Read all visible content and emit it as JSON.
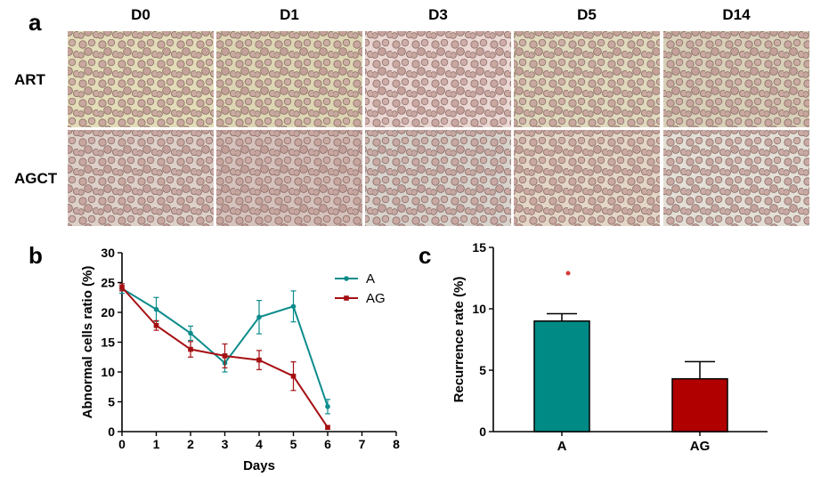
{
  "panel_a": {
    "label": "a",
    "columns": [
      "D0",
      "D1",
      "D3",
      "D5",
      "D14"
    ],
    "rows": [
      "ART",
      "AGCT"
    ]
  },
  "panel_b": {
    "label": "b"
  },
  "panel_c": {
    "label": "c"
  },
  "colors": {
    "A": "#0e8c8c",
    "AG": "#a50f12",
    "bar_A": "#008a85",
    "bar_AG": "#b00000"
  },
  "chart_data": [
    {
      "type": "line",
      "xlabel": "Days",
      "ylabel": "Abnormal cells ratio (%)",
      "xlim": [
        0,
        8
      ],
      "ylim": [
        0,
        30
      ],
      "xticks": [
        "0",
        "1",
        "2",
        "3",
        "4",
        "5",
        "6",
        "7",
        "8"
      ],
      "yticks": [
        "0",
        "5",
        "10",
        "15",
        "20",
        "25",
        "30"
      ],
      "legend": "top-right",
      "series": [
        {
          "name": "A",
          "color": "#0e8c8c",
          "x": [
            0,
            1,
            2,
            3,
            4,
            5,
            6
          ],
          "y": [
            24.0,
            20.5,
            16.5,
            11.5,
            19.2,
            21.0,
            4.2
          ],
          "err": [
            0.8,
            2.0,
            1.2,
            1.5,
            2.8,
            2.6,
            1.2
          ]
        },
        {
          "name": "AG",
          "color": "#a50f12",
          "x": [
            0,
            1,
            2,
            3,
            4,
            5,
            6
          ],
          "y": [
            24.2,
            17.8,
            13.8,
            12.7,
            12.0,
            9.3,
            0.7
          ],
          "err": [
            0.6,
            0.8,
            1.3,
            2.0,
            1.6,
            2.4,
            0.3
          ]
        }
      ]
    },
    {
      "type": "bar",
      "categories": [
        "A",
        "AG"
      ],
      "values": [
        9.0,
        4.3
      ],
      "err": [
        0.6,
        1.4
      ],
      "outliers": [
        {
          "category": "A",
          "value": 12.9
        }
      ],
      "xlabel": "",
      "ylabel": "Recurrence rate (%)",
      "ylim": [
        0,
        15
      ],
      "yticks": [
        "0",
        "5",
        "10",
        "15"
      ]
    }
  ]
}
